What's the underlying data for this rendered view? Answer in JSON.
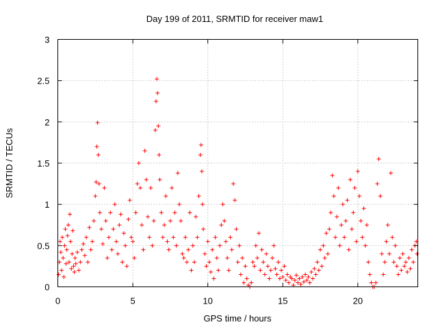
{
  "chart_data": {
    "type": "scatter",
    "title": "Day 199 of 2011, SRMTID for receiver maw1",
    "xlabel": "GPS time / hours",
    "ylabel": "SRMTID / TECUs",
    "xlim": [
      0,
      24
    ],
    "ylim": [
      0,
      3
    ],
    "x_ticks": [
      0,
      5,
      10,
      15,
      20
    ],
    "y_ticks": [
      0,
      0.5,
      1,
      1.5,
      2,
      2.5,
      3
    ],
    "x_tick_labels": [
      "0",
      "5",
      "10",
      "15",
      "20"
    ],
    "y_tick_labels": [
      "0",
      "0.5",
      "1",
      "1.5",
      "2",
      "2.5",
      "3"
    ],
    "grid": true,
    "marker": "plus",
    "marker_color": "#ff0000",
    "series": [
      {
        "name": "maw1",
        "points": [
          [
            0.05,
            0.15
          ],
          [
            0.1,
            0.3
          ],
          [
            0.15,
            0.55
          ],
          [
            0.2,
            0.42
          ],
          [
            0.25,
            0.2
          ],
          [
            0.3,
            0.6
          ],
          [
            0.35,
            0.35
          ],
          [
            0.4,
            0.12
          ],
          [
            0.45,
            0.5
          ],
          [
            0.5,
            0.7
          ],
          [
            0.55,
            0.28
          ],
          [
            0.6,
            0.45
          ],
          [
            0.65,
            0.62
          ],
          [
            0.7,
            0.75
          ],
          [
            0.75,
            0.3
          ],
          [
            0.8,
            0.88
          ],
          [
            0.85,
            0.55
          ],
          [
            0.9,
            0.22
          ],
          [
            0.95,
            0.4
          ],
          [
            1.0,
            0.68
          ],
          [
            1.05,
            0.25
          ],
          [
            1.1,
            0.18
          ],
          [
            1.15,
            0.35
          ],
          [
            1.2,
            0.28
          ],
          [
            1.3,
            0.42
          ],
          [
            1.4,
            0.2
          ],
          [
            1.5,
            0.3
          ],
          [
            1.6,
            0.45
          ],
          [
            1.7,
            0.52
          ],
          [
            1.8,
            0.38
          ],
          [
            1.9,
            0.6
          ],
          [
            2.0,
            0.3
          ],
          [
            2.1,
            0.72
          ],
          [
            2.2,
            0.45
          ],
          [
            2.3,
            0.55
          ],
          [
            2.4,
            0.8
          ],
          [
            2.5,
            1.1
          ],
          [
            2.55,
            1.27
          ],
          [
            2.6,
            1.7
          ],
          [
            2.65,
            1.99
          ],
          [
            2.7,
            1.6
          ],
          [
            2.75,
            1.25
          ],
          [
            2.8,
            0.9
          ],
          [
            2.9,
            0.7
          ],
          [
            3.0,
            0.52
          ],
          [
            3.1,
            1.2
          ],
          [
            3.2,
            0.8
          ],
          [
            3.3,
            0.35
          ],
          [
            3.4,
            0.6
          ],
          [
            3.5,
            0.9
          ],
          [
            3.6,
            0.45
          ],
          [
            3.7,
            0.7
          ],
          [
            3.8,
            1.0
          ],
          [
            3.9,
            0.55
          ],
          [
            4.0,
            0.4
          ],
          [
            4.1,
            0.75
          ],
          [
            4.2,
            0.88
          ],
          [
            4.3,
            0.3
          ],
          [
            4.4,
            0.65
          ],
          [
            4.5,
            0.5
          ],
          [
            4.6,
            0.25
          ],
          [
            4.7,
            0.82
          ],
          [
            4.8,
            1.05
          ],
          [
            4.9,
            0.6
          ],
          [
            5.0,
            0.55
          ],
          [
            5.1,
            0.35
          ],
          [
            5.2,
            0.9
          ],
          [
            5.3,
            1.25
          ],
          [
            5.4,
            1.5
          ],
          [
            5.5,
            1.2
          ],
          [
            5.6,
            0.75
          ],
          [
            5.7,
            0.45
          ],
          [
            5.8,
            1.65
          ],
          [
            5.9,
            1.3
          ],
          [
            6.0,
            0.85
          ],
          [
            6.1,
            0.6
          ],
          [
            6.2,
            1.2
          ],
          [
            6.3,
            0.5
          ],
          [
            6.4,
            0.8
          ],
          [
            6.5,
            1.9
          ],
          [
            6.55,
            2.25
          ],
          [
            6.6,
            2.52
          ],
          [
            6.65,
            2.35
          ],
          [
            6.7,
            1.95
          ],
          [
            6.75,
            1.6
          ],
          [
            6.8,
            1.3
          ],
          [
            6.9,
            0.9
          ],
          [
            7.0,
            0.6
          ],
          [
            7.1,
            0.75
          ],
          [
            7.2,
            1.1
          ],
          [
            7.3,
            0.55
          ],
          [
            7.4,
            0.45
          ],
          [
            7.5,
            0.8
          ],
          [
            7.6,
            1.2
          ],
          [
            7.7,
            0.6
          ],
          [
            7.8,
            0.9
          ],
          [
            7.9,
            0.5
          ],
          [
            8.0,
            1.38
          ],
          [
            8.1,
            1.0
          ],
          [
            8.2,
            0.8
          ],
          [
            8.3,
            0.4
          ],
          [
            8.4,
            0.35
          ],
          [
            8.5,
            0.6
          ],
          [
            8.6,
            0.3
          ],
          [
            8.7,
            0.45
          ],
          [
            8.8,
            0.9
          ],
          [
            8.9,
            0.2
          ],
          [
            9.0,
            0.5
          ],
          [
            9.1,
            0.3
          ],
          [
            9.2,
            0.85
          ],
          [
            9.3,
            0.6
          ],
          [
            9.4,
            1.1
          ],
          [
            9.5,
            1.6
          ],
          [
            9.55,
            1.72
          ],
          [
            9.6,
            1.4
          ],
          [
            9.65,
            1.0
          ],
          [
            9.7,
            0.7
          ],
          [
            9.8,
            0.4
          ],
          [
            9.9,
            0.25
          ],
          [
            10.0,
            0.55
          ],
          [
            10.1,
            0.3
          ],
          [
            10.2,
            0.18
          ],
          [
            10.3,
            0.45
          ],
          [
            10.4,
            0.1
          ],
          [
            10.5,
            0.6
          ],
          [
            10.6,
            0.35
          ],
          [
            10.7,
            0.2
          ],
          [
            10.8,
            0.5
          ],
          [
            10.9,
            0.75
          ],
          [
            11.0,
            1.0
          ],
          [
            11.1,
            0.8
          ],
          [
            11.2,
            0.55
          ],
          [
            11.3,
            0.35
          ],
          [
            11.4,
            0.2
          ],
          [
            11.5,
            0.6
          ],
          [
            11.6,
            0.45
          ],
          [
            11.7,
            1.25
          ],
          [
            11.8,
            1.05
          ],
          [
            11.9,
            0.7
          ],
          [
            12.0,
            0.3
          ],
          [
            12.1,
            0.5
          ],
          [
            12.2,
            0.15
          ],
          [
            12.3,
            0.35
          ],
          [
            12.4,
            0.05
          ],
          [
            12.5,
            0.25
          ],
          [
            12.6,
            0.1
          ],
          [
            12.7,
            0.02
          ],
          [
            12.8,
            0.0
          ],
          [
            12.9,
            0.05
          ],
          [
            13.0,
            0.3
          ],
          [
            13.1,
            0.25
          ],
          [
            13.2,
            0.5
          ],
          [
            13.3,
            0.35
          ],
          [
            13.4,
            0.65
          ],
          [
            13.5,
            0.2
          ],
          [
            13.6,
            0.45
          ],
          [
            13.7,
            0.3
          ],
          [
            13.8,
            0.15
          ],
          [
            13.9,
            0.4
          ],
          [
            14.0,
            0.25
          ],
          [
            14.1,
            0.1
          ],
          [
            14.2,
            0.2
          ],
          [
            14.3,
            0.35
          ],
          [
            14.4,
            0.5
          ],
          [
            14.5,
            0.22
          ],
          [
            14.6,
            0.15
          ],
          [
            14.7,
            0.3
          ],
          [
            14.8,
            0.1
          ],
          [
            14.9,
            0.2
          ],
          [
            15.0,
            0.12
          ],
          [
            15.1,
            0.25
          ],
          [
            15.2,
            0.08
          ],
          [
            15.3,
            0.15
          ],
          [
            15.4,
            0.05
          ],
          [
            15.5,
            0.12
          ],
          [
            15.6,
            0.1
          ],
          [
            15.7,
            0.02
          ],
          [
            15.8,
            0.08
          ],
          [
            15.9,
            0.14
          ],
          [
            16.0,
            0.05
          ],
          [
            16.1,
            0.1
          ],
          [
            16.2,
            0.03
          ],
          [
            16.3,
            0.12
          ],
          [
            16.4,
            0.06
          ],
          [
            16.5,
            0.15
          ],
          [
            16.6,
            0.08
          ],
          [
            16.7,
            0.12
          ],
          [
            16.8,
            0.05
          ],
          [
            16.9,
            0.18
          ],
          [
            17.0,
            0.1
          ],
          [
            17.1,
            0.22
          ],
          [
            17.2,
            0.15
          ],
          [
            17.3,
            0.3
          ],
          [
            17.4,
            0.2
          ],
          [
            17.5,
            0.45
          ],
          [
            17.6,
            0.25
          ],
          [
            17.7,
            0.5
          ],
          [
            17.8,
            0.35
          ],
          [
            17.9,
            0.65
          ],
          [
            18.0,
            0.4
          ],
          [
            18.1,
            0.7
          ],
          [
            18.2,
            0.9
          ],
          [
            18.3,
            1.35
          ],
          [
            18.4,
            1.1
          ],
          [
            18.5,
            0.6
          ],
          [
            18.6,
            0.85
          ],
          [
            18.7,
            1.2
          ],
          [
            18.8,
            0.5
          ],
          [
            18.9,
            0.75
          ],
          [
            19.0,
            1.0
          ],
          [
            19.1,
            0.6
          ],
          [
            19.2,
            0.8
          ],
          [
            19.3,
            1.05
          ],
          [
            19.4,
            0.45
          ],
          [
            19.5,
            1.3
          ],
          [
            19.6,
            0.7
          ],
          [
            19.7,
            0.9
          ],
          [
            19.8,
            1.2
          ],
          [
            19.9,
            0.55
          ],
          [
            20.0,
            1.4
          ],
          [
            20.1,
            1.1
          ],
          [
            20.2,
            0.8
          ],
          [
            20.3,
            0.6
          ],
          [
            20.4,
            0.95
          ],
          [
            20.5,
            0.5
          ],
          [
            20.6,
            0.75
          ],
          [
            20.7,
            0.3
          ],
          [
            20.8,
            0.15
          ],
          [
            20.9,
            0.05
          ],
          [
            21.0,
            0.0
          ],
          [
            21.1,
            0.0
          ],
          [
            21.2,
            0.05
          ],
          [
            21.3,
            1.25
          ],
          [
            21.4,
            1.55
          ],
          [
            21.5,
            1.1
          ],
          [
            21.6,
            0.4
          ],
          [
            21.7,
            0.15
          ],
          [
            21.8,
            0.3
          ],
          [
            21.9,
            0.55
          ],
          [
            22.0,
            0.75
          ],
          [
            22.1,
            0.4
          ],
          [
            22.2,
            1.38
          ],
          [
            22.3,
            0.6
          ],
          [
            22.4,
            0.3
          ],
          [
            22.5,
            0.5
          ],
          [
            22.6,
            0.25
          ],
          [
            22.7,
            0.15
          ],
          [
            22.8,
            0.35
          ],
          [
            22.9,
            0.2
          ],
          [
            23.0,
            0.4
          ],
          [
            23.1,
            0.25
          ],
          [
            23.2,
            0.3
          ],
          [
            23.3,
            0.18
          ],
          [
            23.4,
            0.35
          ],
          [
            23.5,
            0.22
          ],
          [
            23.6,
            0.45
          ],
          [
            23.7,
            0.3
          ],
          [
            23.8,
            0.5
          ],
          [
            23.9,
            0.55
          ],
          [
            23.95,
            0.4
          ]
        ]
      }
    ]
  }
}
